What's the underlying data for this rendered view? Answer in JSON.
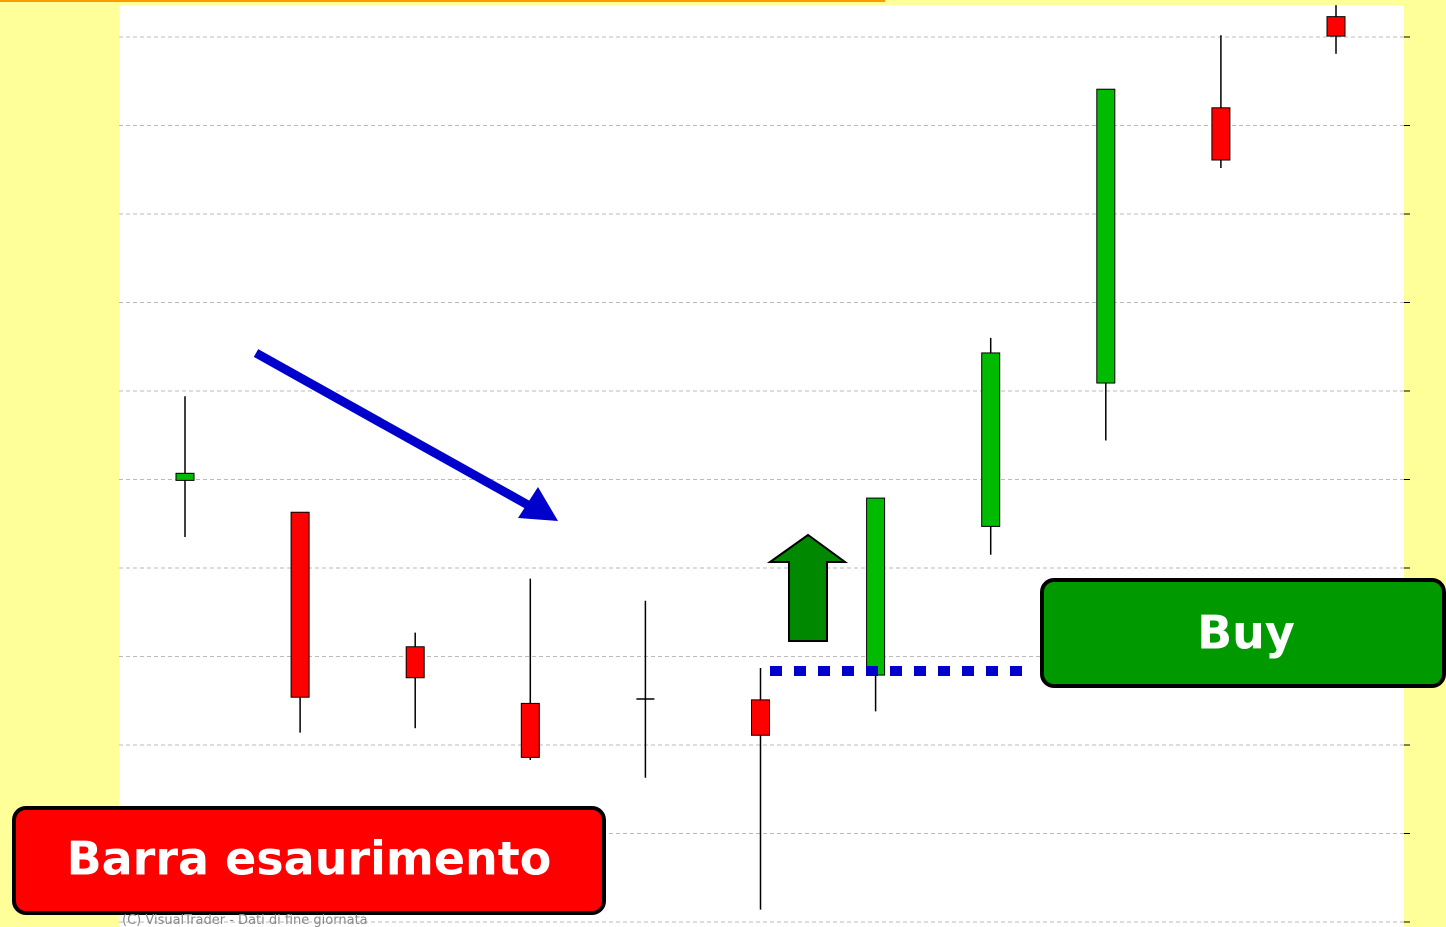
{
  "chart_data": {
    "type": "candlestick",
    "categories": [
      null,
      null,
      null,
      null,
      null,
      null,
      null,
      null,
      null,
      null,
      null
    ],
    "series": [
      {
        "up_color": "#00bb00",
        "down_color": "#ff0000",
        "open": [
          4.99,
          4.63,
          3.11,
          2.47,
          2.52,
          2.51,
          2.79,
          4.47,
          6.09,
          9.2,
          10.23
        ],
        "high": [
          5.94,
          4.63,
          3.27,
          3.88,
          3.63,
          2.87,
          4.79,
          6.6,
          9.41,
          10.02,
          10.36
        ],
        "low": [
          4.35,
          2.14,
          2.19,
          1.83,
          1.63,
          0.14,
          2.38,
          4.15,
          5.44,
          8.52,
          9.81
        ],
        "close": [
          5.07,
          2.54,
          2.76,
          1.86,
          2.52,
          2.11,
          4.79,
          6.43,
          9.41,
          8.61,
          10.01
        ]
      }
    ],
    "ylim": [
      0,
      10.4
    ],
    "yticks": [
      0,
      1,
      2,
      3,
      4,
      5,
      6,
      7,
      8,
      9,
      10
    ],
    "grid": true,
    "annotations": [
      "Barra esaurimento",
      "Buy"
    ],
    "watermark": "(C) VisualTrader - Dati di fine giornata"
  }
}
